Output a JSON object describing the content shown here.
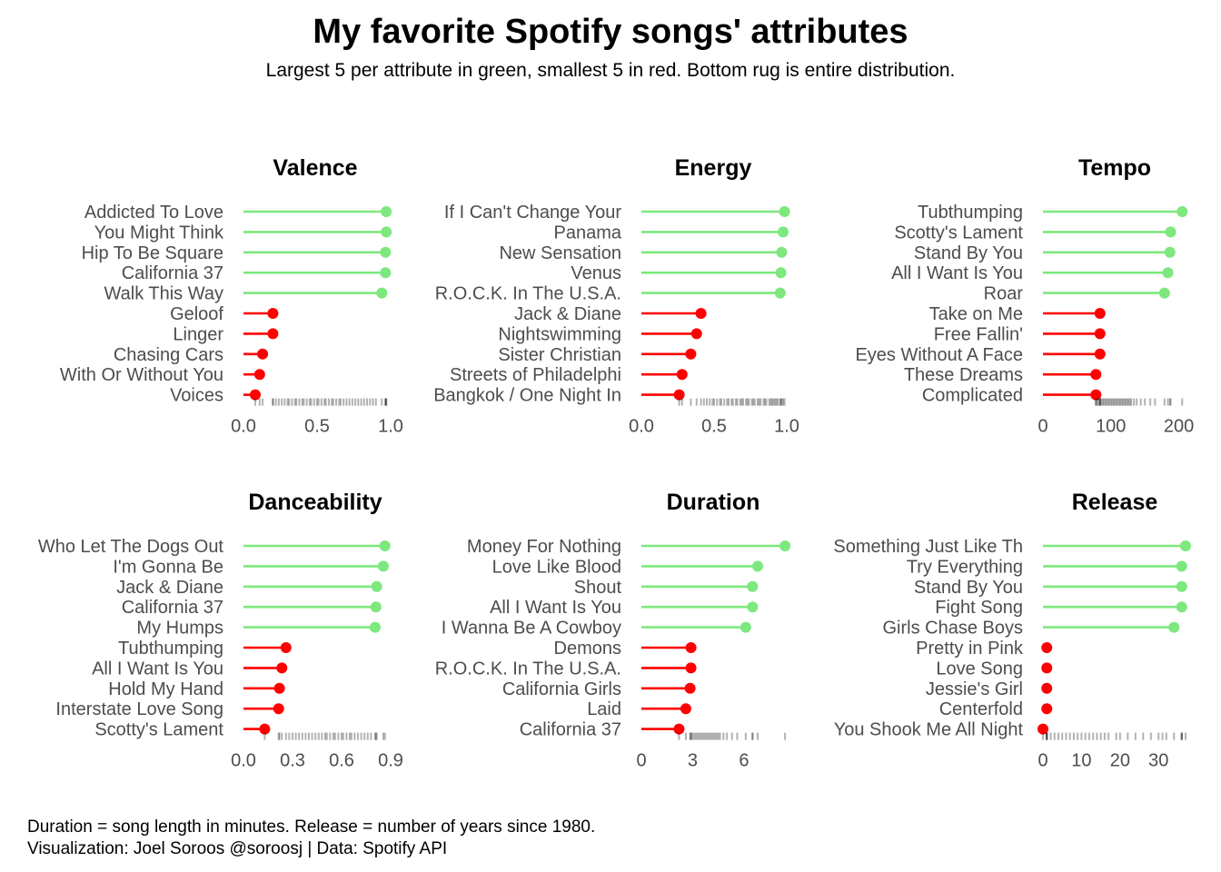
{
  "title": "My favorite Spotify songs' attributes",
  "subtitle": "Largest 5 per attribute in green, smallest 5 in red.  Bottom rug is entire distribution.",
  "caption_line1": "Duration = song length in minutes.  Release = number of years since 1980.",
  "caption_line2": "Visualization: Joel Soroos @soroosj    |   Data: Spotify API",
  "colors": {
    "largest": "#7de87d",
    "smallest": "#ff0000",
    "rug": "#000000",
    "text": "#4d4d4d"
  },
  "chart_data": [
    {
      "type": "lollipop",
      "title": "Valence",
      "xlim": [
        0,
        1.0
      ],
      "ticks": [
        0.0,
        0.5,
        1.0
      ],
      "tick_labels": [
        "0.0",
        "0.5",
        "1.0"
      ],
      "largest": [
        {
          "song": "Addicted To Love",
          "value": 0.97
        },
        {
          "song": "You Might Think",
          "value": 0.97
        },
        {
          "song": "Hip To Be Square",
          "value": 0.965
        },
        {
          "song": "California 37",
          "value": 0.965
        },
        {
          "song": "Walk This Way",
          "value": 0.94
        }
      ],
      "smallest": [
        {
          "song": "Geloof",
          "value": 0.2
        },
        {
          "song": "Linger",
          "value": 0.2
        },
        {
          "song": "Chasing Cars",
          "value": 0.13
        },
        {
          "song": "With Or Without You",
          "value": 0.11
        },
        {
          "song": "Voices",
          "value": 0.08
        }
      ],
      "rug": [
        0.08,
        0.11,
        0.13,
        0.2,
        0.2,
        0.22,
        0.24,
        0.26,
        0.28,
        0.3,
        0.31,
        0.33,
        0.35,
        0.36,
        0.38,
        0.4,
        0.41,
        0.43,
        0.45,
        0.46,
        0.48,
        0.5,
        0.51,
        0.53,
        0.55,
        0.56,
        0.58,
        0.6,
        0.61,
        0.63,
        0.65,
        0.66,
        0.68,
        0.7,
        0.72,
        0.74,
        0.76,
        0.78,
        0.8,
        0.82,
        0.84,
        0.86,
        0.88,
        0.9,
        0.94,
        0.965,
        0.965,
        0.97,
        0.97
      ]
    },
    {
      "type": "lollipop",
      "title": "Energy",
      "xlim": [
        0,
        1.0
      ],
      "ticks": [
        0.0,
        0.5,
        1.0
      ],
      "tick_labels": [
        "0.0",
        "0.5",
        "1.0"
      ],
      "largest": [
        {
          "song": "If I Can't Change Your",
          "value": 0.985
        },
        {
          "song": "Panama",
          "value": 0.975
        },
        {
          "song": "New Sensation",
          "value": 0.965
        },
        {
          "song": "Venus",
          "value": 0.96
        },
        {
          "song": "R.O.C.K. In The U.S.A.",
          "value": 0.955
        }
      ],
      "smallest": [
        {
          "song": "Jack & Diane",
          "value": 0.41
        },
        {
          "song": "Nightswimming",
          "value": 0.38
        },
        {
          "song": "Sister Christian",
          "value": 0.34
        },
        {
          "song": "Streets of Philadelphi",
          "value": 0.28
        },
        {
          "song": "Bangkok / One Night In",
          "value": 0.26
        }
      ],
      "rug": [
        0.26,
        0.28,
        0.34,
        0.38,
        0.41,
        0.43,
        0.45,
        0.47,
        0.49,
        0.5,
        0.52,
        0.54,
        0.55,
        0.57,
        0.59,
        0.6,
        0.62,
        0.63,
        0.65,
        0.66,
        0.68,
        0.69,
        0.7,
        0.72,
        0.73,
        0.74,
        0.76,
        0.77,
        0.78,
        0.8,
        0.81,
        0.82,
        0.84,
        0.85,
        0.86,
        0.88,
        0.89,
        0.9,
        0.91,
        0.92,
        0.93,
        0.94,
        0.955,
        0.96,
        0.965,
        0.975,
        0.985
      ]
    },
    {
      "type": "lollipop",
      "title": "Tempo",
      "xlim": [
        0,
        210
      ],
      "ticks": [
        0,
        100,
        200
      ],
      "tick_labels": [
        "0",
        "100",
        "200"
      ],
      "largest": [
        {
          "song": "Tubthumping",
          "value": 205
        },
        {
          "song": "Scotty's Lament",
          "value": 188
        },
        {
          "song": "Stand By You",
          "value": 187
        },
        {
          "song": "All I Want Is You",
          "value": 184
        },
        {
          "song": "Roar",
          "value": 179
        }
      ],
      "smallest": [
        {
          "song": "Take on Me",
          "value": 84
        },
        {
          "song": "Free Fallin'",
          "value": 84
        },
        {
          "song": "Eyes Without A Face",
          "value": 84
        },
        {
          "song": "These Dreams",
          "value": 78
        },
        {
          "song": "Complicated",
          "value": 78
        }
      ],
      "rug": [
        78,
        78,
        80,
        82,
        84,
        84,
        84,
        86,
        88,
        90,
        92,
        94,
        96,
        98,
        100,
        102,
        104,
        106,
        108,
        110,
        112,
        114,
        116,
        118,
        120,
        122,
        124,
        126,
        128,
        130,
        134,
        138,
        144,
        150,
        158,
        165,
        179,
        184,
        187,
        188,
        205
      ]
    },
    {
      "type": "lollipop",
      "title": "Danceability",
      "xlim": [
        0,
        0.9
      ],
      "ticks": [
        0.0,
        0.3,
        0.6,
        0.9
      ],
      "tick_labels": [
        "0.0",
        "0.3",
        "0.6",
        "0.9"
      ],
      "largest": [
        {
          "song": "Who Let The Dogs Out",
          "value": 0.865
        },
        {
          "song": "I'm Gonna Be",
          "value": 0.855
        },
        {
          "song": "Jack & Diane",
          "value": 0.815
        },
        {
          "song": "California 37",
          "value": 0.81
        },
        {
          "song": "My Humps",
          "value": 0.805
        }
      ],
      "smallest": [
        {
          "song": "Tubthumping",
          "value": 0.26
        },
        {
          "song": "All I Want Is You",
          "value": 0.235
        },
        {
          "song": "Hold My Hand",
          "value": 0.22
        },
        {
          "song": "Interstate Love Song",
          "value": 0.215
        },
        {
          "song": "Scotty's Lament",
          "value": 0.13
        }
      ],
      "rug": [
        0.13,
        0.215,
        0.22,
        0.235,
        0.26,
        0.28,
        0.3,
        0.32,
        0.34,
        0.36,
        0.38,
        0.4,
        0.42,
        0.44,
        0.46,
        0.48,
        0.5,
        0.51,
        0.53,
        0.55,
        0.56,
        0.58,
        0.6,
        0.61,
        0.63,
        0.65,
        0.66,
        0.68,
        0.7,
        0.72,
        0.74,
        0.76,
        0.78,
        0.805,
        0.81,
        0.815,
        0.855,
        0.865
      ]
    },
    {
      "type": "lollipop",
      "title": "Duration",
      "xlim": [
        0,
        8.5
      ],
      "ticks": [
        0,
        3,
        6
      ],
      "tick_labels": [
        "0",
        "3",
        "6"
      ],
      "largest": [
        {
          "song": "Money For Nothing",
          "value": 8.4
        },
        {
          "song": "Love Like Blood",
          "value": 6.8
        },
        {
          "song": "Shout",
          "value": 6.5
        },
        {
          "song": "All I Want Is You",
          "value": 6.5
        },
        {
          "song": "I Wanna Be A Cowboy",
          "value": 6.1
        }
      ],
      "smallest": [
        {
          "song": "Demons",
          "value": 2.9
        },
        {
          "song": "R.O.C.K. In The U.S.A.",
          "value": 2.9
        },
        {
          "song": "California Girls",
          "value": 2.85
        },
        {
          "song": "Laid",
          "value": 2.6
        },
        {
          "song": "California 37",
          "value": 2.2
        }
      ],
      "rug": [
        2.2,
        2.6,
        2.85,
        2.9,
        2.9,
        3.0,
        3.1,
        3.2,
        3.3,
        3.4,
        3.5,
        3.6,
        3.7,
        3.8,
        3.9,
        4.0,
        4.1,
        4.2,
        4.3,
        4.4,
        4.5,
        4.6,
        4.8,
        5.0,
        5.3,
        5.6,
        6.1,
        6.5,
        6.5,
        6.8,
        8.4
      ]
    },
    {
      "type": "lollipop",
      "title": "Release",
      "xlim": [
        0,
        37
      ],
      "ticks": [
        0,
        10,
        20,
        30
      ],
      "tick_labels": [
        "0",
        "10",
        "20",
        "30"
      ],
      "largest": [
        {
          "song": "Something Just Like Th",
          "value": 37
        },
        {
          "song": "Try Everything",
          "value": 36
        },
        {
          "song": "Stand By You",
          "value": 36
        },
        {
          "song": "Fight Song",
          "value": 36
        },
        {
          "song": "Girls Chase Boys",
          "value": 34
        }
      ],
      "smallest": [
        {
          "song": "Pretty in Pink",
          "value": 1
        },
        {
          "song": "Love Song",
          "value": 1
        },
        {
          "song": "Jessie's Girl",
          "value": 1
        },
        {
          "song": "Centerfold",
          "value": 1
        },
        {
          "song": "You Shook Me All Night",
          "value": 0
        }
      ],
      "rug": [
        0,
        1,
        1,
        1,
        1,
        2,
        3,
        4,
        5,
        6,
        7,
        8,
        9,
        10,
        11,
        12,
        13,
        14,
        15,
        16,
        17,
        19,
        20,
        22,
        24,
        26,
        28,
        30,
        31,
        32,
        34,
        36,
        36,
        36,
        37
      ]
    }
  ]
}
